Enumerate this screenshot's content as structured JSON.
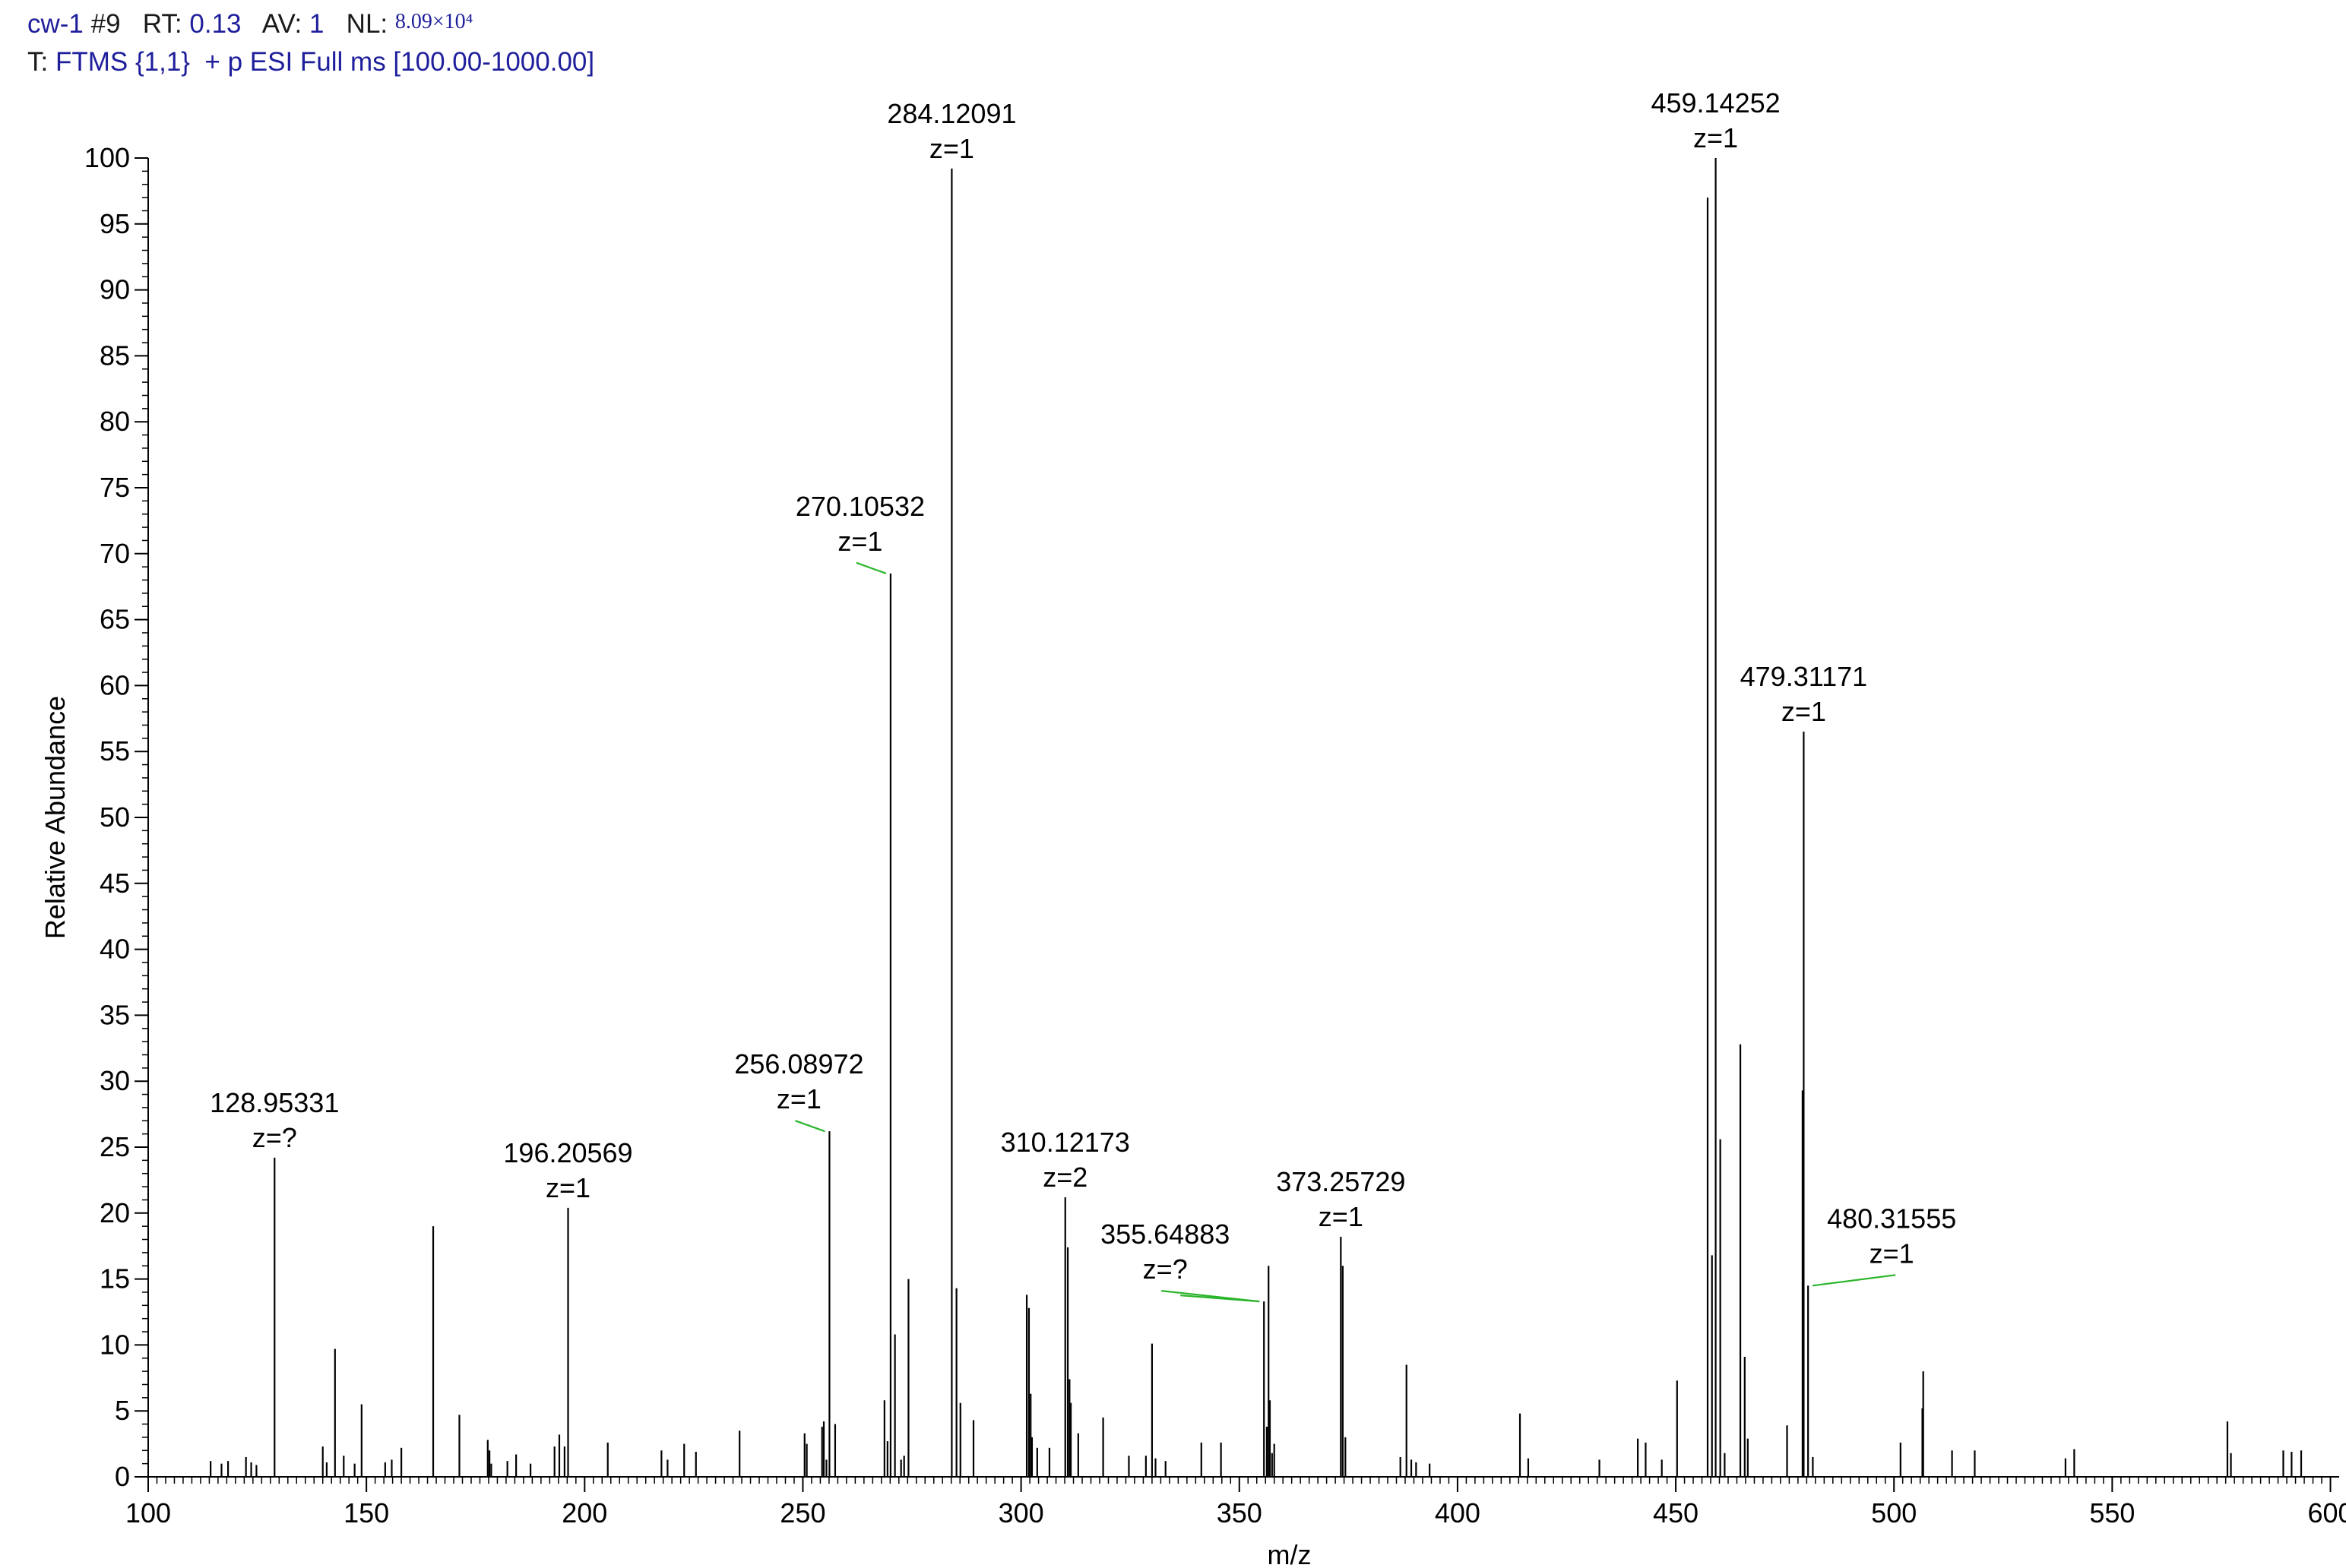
{
  "header": {
    "scan_id": "cw-1",
    "scan_num": "#9",
    "rt_label": "RT:",
    "rt_value": "0.13",
    "av_label": "AV:",
    "av_value": "1",
    "nl_label": "NL:",
    "nl_value": "8.09×10⁴",
    "filter_prefix": "T:",
    "filter_text": "FTMS {1,1}  + p ESI Full ms [100.00-1000.00]"
  },
  "chart_data": {
    "type": "bar",
    "xlabel": "m/z",
    "ylabel": "Relative Abundance",
    "xlim": [
      100,
      602
    ],
    "ylim": [
      0,
      100
    ],
    "x_ticks": [
      100,
      150,
      200,
      250,
      300,
      350,
      400,
      450,
      500,
      550,
      600
    ],
    "y_ticks": [
      0,
      5,
      10,
      15,
      20,
      25,
      30,
      35,
      40,
      45,
      50,
      55,
      60,
      65,
      70,
      75,
      80,
      85,
      90,
      95,
      100
    ],
    "peaks": [
      [
        114.3,
        1.2
      ],
      [
        116.8,
        1.0
      ],
      [
        118.3,
        1.2
      ],
      [
        122.4,
        1.5
      ],
      [
        123.6,
        1.1
      ],
      [
        124.8,
        0.9
      ],
      [
        128.95331,
        24.2
      ],
      [
        140.0,
        2.3
      ],
      [
        140.9,
        1.1
      ],
      [
        142.8,
        9.7
      ],
      [
        144.8,
        1.6
      ],
      [
        147.3,
        1.0
      ],
      [
        148.9,
        5.5
      ],
      [
        154.3,
        1.1
      ],
      [
        155.8,
        1.3
      ],
      [
        158.0,
        2.2
      ],
      [
        165.3,
        19.0
      ],
      [
        171.3,
        4.7
      ],
      [
        177.8,
        2.8
      ],
      [
        178.2,
        2.0
      ],
      [
        178.6,
        1.0
      ],
      [
        182.3,
        1.2
      ],
      [
        184.3,
        1.7
      ],
      [
        187.6,
        1.0
      ],
      [
        193.1,
        2.3
      ],
      [
        194.2,
        3.2
      ],
      [
        195.4,
        2.3
      ],
      [
        196.20569,
        20.4
      ],
      [
        205.3,
        2.6
      ],
      [
        217.6,
        2.0
      ],
      [
        219.0,
        1.3
      ],
      [
        222.8,
        2.5
      ],
      [
        225.5,
        1.9
      ],
      [
        235.5,
        3.5
      ],
      [
        250.4,
        3.3
      ],
      [
        250.9,
        2.5
      ],
      [
        254.4,
        3.8
      ],
      [
        254.8,
        4.2
      ],
      [
        255.4,
        1.3
      ],
      [
        256.08972,
        26.2
      ],
      [
        257.4,
        4.0
      ],
      [
        268.7,
        5.8
      ],
      [
        269.4,
        2.7
      ],
      [
        270.10532,
        68.5
      ],
      [
        271.1,
        10.8
      ],
      [
        272.5,
        1.3
      ],
      [
        273.2,
        1.6
      ],
      [
        274.2,
        15.0
      ],
      [
        284.12091,
        99.2
      ],
      [
        285.2,
        14.3
      ],
      [
        286.1,
        5.6
      ],
      [
        289.1,
        4.3
      ],
      [
        301.3,
        13.8
      ],
      [
        301.8,
        12.8
      ],
      [
        302.2,
        6.3
      ],
      [
        302.5,
        3.0
      ],
      [
        303.7,
        2.2
      ],
      [
        306.5,
        2.2
      ],
      [
        310.12173,
        21.2
      ],
      [
        310.7,
        17.4
      ],
      [
        311.1,
        7.4
      ],
      [
        311.4,
        5.6
      ],
      [
        313.1,
        3.3
      ],
      [
        318.8,
        4.5
      ],
      [
        324.7,
        1.6
      ],
      [
        328.6,
        1.6
      ],
      [
        330.0,
        10.1
      ],
      [
        330.8,
        1.4
      ],
      [
        333.1,
        1.2
      ],
      [
        341.3,
        2.6
      ],
      [
        345.8,
        2.6
      ],
      [
        355.64883,
        13.3
      ],
      [
        356.3,
        3.8
      ],
      [
        356.7,
        16.0
      ],
      [
        357.0,
        5.8
      ],
      [
        357.5,
        1.8
      ],
      [
        358.0,
        2.5
      ],
      [
        373.25729,
        18.2
      ],
      [
        373.7,
        16.0
      ],
      [
        374.3,
        3.0
      ],
      [
        386.9,
        1.5
      ],
      [
        388.3,
        8.5
      ],
      [
        389.4,
        1.3
      ],
      [
        390.5,
        1.1
      ],
      [
        393.6,
        1.0
      ],
      [
        414.3,
        4.8
      ],
      [
        416.2,
        1.4
      ],
      [
        432.5,
        1.3
      ],
      [
        441.3,
        2.9
      ],
      [
        443.1,
        2.6
      ],
      [
        446.8,
        1.3
      ],
      [
        450.3,
        7.3
      ],
      [
        457.3,
        97.0
      ],
      [
        458.3,
        16.8
      ],
      [
        459.14252,
        100.0
      ],
      [
        460.2,
        25.6
      ],
      [
        461.2,
        1.8
      ],
      [
        464.8,
        32.8
      ],
      [
        465.8,
        9.1
      ],
      [
        466.5,
        2.9
      ],
      [
        475.5,
        3.9
      ],
      [
        479.31171,
        56.5
      ],
      [
        479.05,
        29.3
      ],
      [
        480.31555,
        14.5
      ],
      [
        481.4,
        1.5
      ],
      [
        501.5,
        2.6
      ],
      [
        506.5,
        5.2
      ],
      [
        506.7,
        8.0
      ],
      [
        513.3,
        2.0
      ],
      [
        518.5,
        2.0
      ],
      [
        539.3,
        1.4
      ],
      [
        541.3,
        2.1
      ],
      [
        576.4,
        4.2
      ],
      [
        577.2,
        1.8
      ],
      [
        589.2,
        2.0
      ],
      [
        591.1,
        1.9
      ],
      [
        593.3,
        2.0
      ]
    ],
    "annotations": [
      {
        "mz": "128.95331",
        "z": "z=?",
        "x": 128.95331,
        "y": 24.2,
        "leader": false
      },
      {
        "mz": "196.20569",
        "z": "z=1",
        "x": 196.20569,
        "y": 20.4,
        "leader": false
      },
      {
        "mz": "256.08972",
        "z": "z=1",
        "x": 256.08972,
        "y": 26.2,
        "leader": true
      },
      {
        "mz": "270.10532",
        "z": "z=1",
        "x": 270.10532,
        "y": 68.5,
        "leader": true
      },
      {
        "mz": "284.12091",
        "z": "z=1",
        "x": 284.12091,
        "y": 99.2,
        "leader": false
      },
      {
        "mz": "310.12173",
        "z": "z=2",
        "x": 310.12173,
        "y": 21.2,
        "leader": false
      },
      {
        "mz": "355.64883",
        "z": "z=?",
        "x": 355.64883,
        "y": 13.3,
        "leader": true
      },
      {
        "mz": "373.25729",
        "z": "z=1",
        "x": 373.25729,
        "y": 18.2,
        "leader": false
      },
      {
        "mz": "459.14252",
        "z": "z=1",
        "x": 459.14252,
        "y": 100.0,
        "leader": false
      },
      {
        "mz": "479.31171",
        "z": "z=1",
        "x": 479.31171,
        "y": 56.5,
        "leader": false
      },
      {
        "mz": "480.31555",
        "z": "z=1",
        "x": 480.31555,
        "y": 14.5,
        "leader": true
      }
    ],
    "leader_color": "#2bb52b"
  }
}
